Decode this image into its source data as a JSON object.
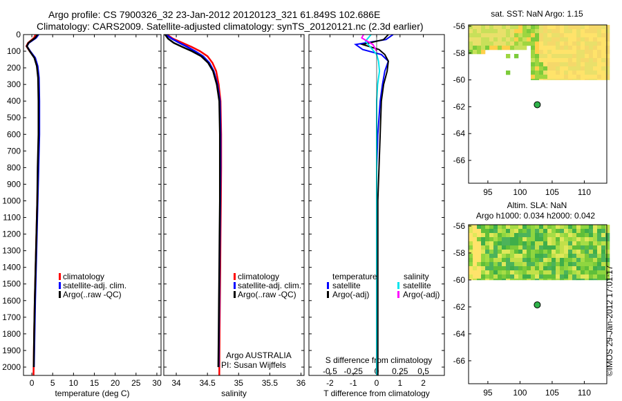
{
  "header": {
    "line1": "Argo profile: CS 7900326_32 23-Jan-2012 20120123_321 61.849S 102.686E",
    "line2": "Climatology: CARS2009. Satellite-adjusted climatology: synTS_20120121.nc (2.3d earlier)"
  },
  "colors": {
    "climatology": "#ff0000",
    "satellite": "#0000ff",
    "argo": "#000000",
    "sal_satellite": "#00e5ee",
    "sal_argo": "#ff00ff"
  },
  "chart_data": [
    {
      "id": "temperature",
      "type": "line",
      "xlabel": "temperature (deg C)",
      "ylabel": "",
      "xlim": [
        -2,
        31
      ],
      "ylim": [
        2050,
        0
      ],
      "xticks": [
        0,
        5,
        10,
        15,
        20,
        25,
        30
      ],
      "yticks": [
        0,
        100,
        200,
        300,
        400,
        500,
        600,
        700,
        800,
        900,
        1000,
        1100,
        1200,
        1300,
        1400,
        1500,
        1600,
        1700,
        1800,
        1900,
        2000
      ],
      "legend": [
        "climatology",
        "satellite-adj. clim.",
        "Argo(..raw -QC)"
      ],
      "series": [
        {
          "name": "climatology",
          "x": [
            0.9,
            0.5,
            -0.9,
            -1.3,
            -0.5,
            0.7,
            1.3,
            1.6,
            1.7,
            1.7,
            1.5,
            1.3,
            1.1,
            0.9,
            0.7,
            0.55,
            0.4
          ],
          "y": [
            0,
            20,
            50,
            70,
            100,
            140,
            190,
            260,
            400,
            600,
            800,
            1000,
            1200,
            1400,
            1600,
            1800,
            2050
          ]
        },
        {
          "name": "satellite-adj. clim.",
          "x": [
            1.6,
            1.0,
            -0.7,
            -1.2,
            -0.4,
            0.8,
            1.4,
            1.7,
            1.8,
            1.8,
            1.6,
            1.4,
            1.2,
            1.0,
            0.8,
            0.65,
            0.5
          ],
          "y": [
            0,
            20,
            50,
            70,
            100,
            140,
            190,
            260,
            400,
            600,
            800,
            1000,
            1200,
            1400,
            1600,
            1800,
            2000
          ]
        },
        {
          "name": "Argo(..raw -QC)",
          "x": [
            1.4,
            0.8,
            -0.8,
            -1.2,
            -0.5,
            0.6,
            1.2,
            1.5,
            1.6,
            1.6,
            1.4,
            1.3,
            1.1,
            0.9,
            0.7,
            0.55,
            0.45
          ],
          "y": [
            0,
            20,
            50,
            70,
            100,
            140,
            190,
            260,
            400,
            600,
            800,
            1000,
            1200,
            1400,
            1600,
            1800,
            2000
          ]
        }
      ]
    },
    {
      "id": "salinity",
      "type": "line",
      "xlabel": "salinity",
      "xlim": [
        33.8,
        36.05
      ],
      "ylim": [
        2050,
        0
      ],
      "xticks": [
        34,
        34.5,
        35,
        35.5,
        36
      ],
      "xticklabels": [
        "34",
        "34.5",
        "35",
        "35.5",
        "36"
      ],
      "legend": [
        "climatology",
        "satellite-adj. clim.",
        "Argo(..raw -QC)"
      ],
      "annotation": [
        "Argo AUSTRALIA",
        "PI: Susan Wijffels"
      ],
      "series": [
        {
          "name": "climatology",
          "x": [
            33.85,
            33.95,
            34.1,
            34.25,
            34.38,
            34.5,
            34.58,
            34.64,
            34.68,
            34.71,
            34.72,
            34.72,
            34.715,
            34.71,
            34.705,
            34.7,
            34.695,
            34.69
          ],
          "y": [
            0,
            25,
            50,
            75,
            100,
            130,
            170,
            220,
            300,
            400,
            600,
            800,
            1000,
            1200,
            1400,
            1600,
            1800,
            2050
          ]
        },
        {
          "name": "satellite-adj. clim.",
          "x": [
            33.83,
            33.93,
            34.05,
            34.18,
            34.3,
            34.43,
            34.53,
            34.6,
            34.66,
            34.7,
            34.71,
            34.71,
            34.705,
            34.7,
            34.695,
            34.69,
            34.685,
            34.68
          ],
          "y": [
            0,
            25,
            50,
            75,
            100,
            130,
            170,
            220,
            300,
            400,
            600,
            800,
            1000,
            1200,
            1400,
            1600,
            1800,
            2000
          ]
        },
        {
          "name": "Argo(..raw -QC)",
          "x": [
            33.82,
            33.87,
            33.96,
            34.1,
            34.25,
            34.4,
            34.51,
            34.59,
            34.65,
            34.69,
            34.7,
            34.7,
            34.7,
            34.695,
            34.69,
            34.685,
            34.68,
            34.675
          ],
          "y": [
            0,
            25,
            50,
            75,
            100,
            130,
            170,
            220,
            300,
            400,
            600,
            800,
            1000,
            1200,
            1400,
            1600,
            1800,
            2000
          ]
        }
      ]
    },
    {
      "id": "differences",
      "type": "line",
      "xlabel": "T difference from climatology",
      "xlabel_top": "S difference from climatology",
      "xlim": [
        -2.9,
        2.9
      ],
      "ylim": [
        2050,
        0
      ],
      "xticks": [
        -2,
        -1,
        0,
        1,
        2
      ],
      "xticks_top": [
        -0.5,
        -0.25,
        0,
        0.25,
        0.5
      ],
      "xticks_top_labels": [
        "-0.5",
        "-0.25",
        "0",
        "0.25",
        "0.5"
      ],
      "legend_titles": [
        "temperature",
        "salinity"
      ],
      "legend": [
        "satellite",
        "Argo(-adj)",
        "satellite",
        "Argo(-adj)"
      ],
      "series": [
        {
          "name": "temperature satellite",
          "x": [
            0.7,
            0.4,
            -0.9,
            -0.6,
            0.2,
            0.5,
            0.35,
            0.25,
            0.15,
            0.05,
            0.0,
            0.0,
            0.0,
            0.0,
            0.0
          ],
          "y": [
            0,
            30,
            60,
            90,
            120,
            160,
            220,
            300,
            400,
            600,
            800,
            1000,
            1400,
            1800,
            2050
          ]
        },
        {
          "name": "temperature Argo(-adj)",
          "x": [
            0.5,
            0.3,
            -0.6,
            0.1,
            0.35,
            0.5,
            0.45,
            0.3,
            0.2,
            0.15,
            0.1,
            0.05,
            0.05,
            0.05,
            0.05
          ],
          "y": [
            0,
            30,
            60,
            90,
            120,
            160,
            220,
            300,
            400,
            600,
            800,
            1000,
            1400,
            1800,
            2050
          ]
        },
        {
          "name": "salinity satellite",
          "x": [
            -0.06,
            -0.12,
            -0.06,
            0.0,
            0.02,
            0.03,
            0.01,
            0.0,
            0.0,
            0.0,
            0.0,
            0.0,
            0.0
          ],
          "y": [
            0,
            40,
            80,
            120,
            160,
            220,
            300,
            400,
            600,
            800,
            1200,
            1600,
            2050
          ]
        },
        {
          "name": "salinity Argo(-adj)",
          "x": [
            -0.14,
            -0.16,
            -0.1,
            -0.04,
            -0.02,
            0.0
          ],
          "y": [
            0,
            20,
            40,
            60,
            80,
            100
          ]
        }
      ]
    },
    {
      "id": "sst_map",
      "type": "heatmap",
      "title": "sat. SST: NaN Argo: 1.15",
      "xlim": [
        92,
        113.5
      ],
      "ylim": [
        -67.7,
        -55.9
      ],
      "xticks": [
        95,
        100,
        105,
        110
      ],
      "yticks": [
        -56,
        -58,
        -60,
        -62,
        -64,
        -66
      ],
      "marker": {
        "lon": 102.686,
        "lat": -61.849
      }
    },
    {
      "id": "sla_map",
      "type": "heatmap",
      "title": "Altim. SLA: NaN",
      "subtitle": "Argo h1000: 0.034 h2000: 0.042",
      "xlim": [
        92,
        113.5
      ],
      "ylim": [
        -67.7,
        -55.9
      ],
      "xticks": [
        95,
        100,
        105,
        110
      ],
      "yticks": [
        -56,
        -58,
        -60,
        -62,
        -64,
        -66
      ],
      "marker": {
        "lon": 102.686,
        "lat": -61.849
      }
    }
  ],
  "footer": {
    "credit": "©IMOS 29-Jan-2012 17:01:17"
  }
}
